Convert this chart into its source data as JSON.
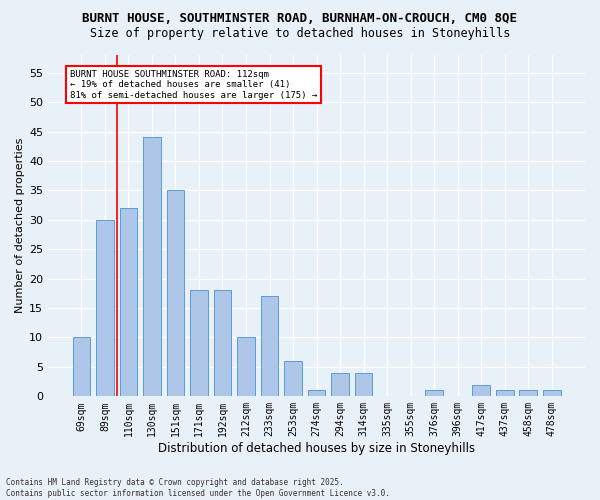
{
  "title_line1": "BURNT HOUSE, SOUTHMINSTER ROAD, BURNHAM-ON-CROUCH, CM0 8QE",
  "title_line2": "Size of property relative to detached houses in Stoneyhills",
  "xlabel": "Distribution of detached houses by size in Stoneyhills",
  "ylabel": "Number of detached properties",
  "categories": [
    "69sqm",
    "89sqm",
    "110sqm",
    "130sqm",
    "151sqm",
    "171sqm",
    "192sqm",
    "212sqm",
    "233sqm",
    "253sqm",
    "274sqm",
    "294sqm",
    "314sqm",
    "335sqm",
    "355sqm",
    "376sqm",
    "396sqm",
    "417sqm",
    "437sqm",
    "458sqm",
    "478sqm"
  ],
  "values": [
    10,
    30,
    32,
    44,
    35,
    18,
    18,
    10,
    17,
    6,
    1,
    4,
    4,
    0,
    0,
    1,
    0,
    2,
    1,
    1,
    1
  ],
  "bar_color": "#aec6e8",
  "bar_edge_color": "#5b9bd5",
  "vline_x_index": 2,
  "vline_color": "red",
  "ylim": [
    0,
    58
  ],
  "yticks": [
    0,
    5,
    10,
    15,
    20,
    25,
    30,
    35,
    40,
    45,
    50,
    55
  ],
  "annotation_title": "BURNT HOUSE SOUTHMINSTER ROAD: 112sqm",
  "annotation_line1": "← 19% of detached houses are smaller (41)",
  "annotation_line2": "81% of semi-detached houses are larger (175) →",
  "annotation_box_color": "white",
  "annotation_box_edge": "red",
  "bg_color": "#e8f0f8",
  "plot_bg_color": "#e8f0f8",
  "footer_line1": "Contains HM Land Registry data © Crown copyright and database right 2025.",
  "footer_line2": "Contains public sector information licensed under the Open Government Licence v3.0.",
  "grid_color": "white",
  "title_fontsize": 9,
  "subtitle_fontsize": 8.5,
  "tick_fontsize": 7,
  "ylabel_fontsize": 8,
  "xlabel_fontsize": 8.5,
  "bar_width": 0.75,
  "annotation_fontsize": 6.5,
  "footer_fontsize": 5.5
}
